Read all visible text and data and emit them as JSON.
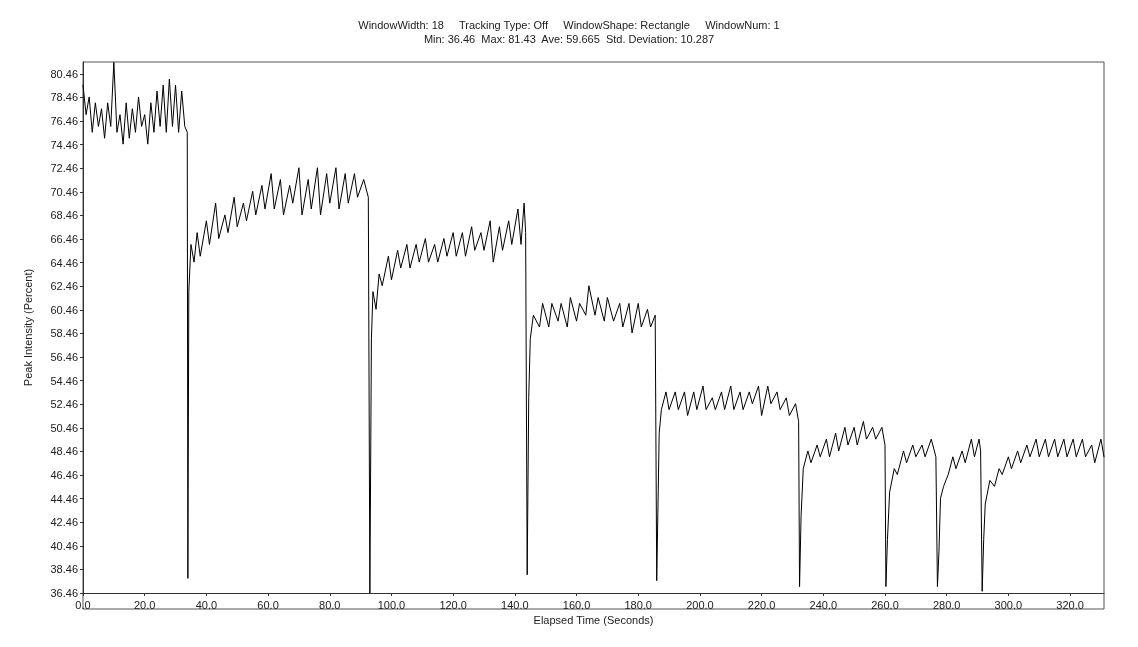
{
  "chart_data": {
    "type": "line",
    "title": "WindowWidth: 18     Tracking Type: Off     WindowShape: Rectangle     WindowNum: 1",
    "subtitle": "Min: 36.46  Max: 81.43  Ave: 59.665  Std. Deviation: 10.287",
    "xlabel": "Elapsed Time (Seconds)",
    "ylabel": "Peak Intensity (Percent)",
    "x": [
      0,
      1,
      2,
      3,
      4,
      5,
      6,
      7,
      8,
      9,
      10,
      11,
      12,
      13,
      14,
      15,
      16,
      17,
      18,
      19,
      20,
      21,
      22,
      23,
      24,
      25,
      26,
      27,
      28,
      29,
      30,
      31,
      32,
      33,
      33.8,
      34,
      34.3,
      35,
      36,
      37,
      38,
      40,
      41,
      43,
      44,
      46,
      47,
      49,
      50,
      52,
      53,
      55,
      56,
      58,
      59,
      61,
      62,
      64,
      65,
      67,
      68,
      70,
      71,
      73,
      74,
      76,
      77,
      79,
      80,
      82,
      83,
      85,
      86,
      88,
      89,
      91,
      92.5,
      93,
      93.5,
      94,
      95,
      96,
      97,
      99,
      100,
      102,
      103,
      105,
      106,
      108,
      109,
      111,
      112,
      114,
      115,
      117,
      118,
      120,
      121,
      123,
      124,
      126,
      127,
      129,
      130,
      132,
      133,
      135,
      136,
      138,
      139,
      141,
      142,
      143,
      143.5,
      144,
      144.5,
      145,
      146,
      148,
      149,
      151,
      152,
      154,
      155,
      157,
      158,
      160,
      161,
      163,
      164,
      166,
      167,
      169,
      170,
      172,
      174,
      175,
      177,
      178,
      180,
      181,
      183,
      184,
      185.5,
      186,
      186.8,
      187.5,
      189,
      190,
      192,
      193,
      195,
      196,
      198,
      199,
      201,
      202,
      204,
      205,
      207,
      208,
      210,
      211,
      213,
      214,
      216,
      217,
      219,
      220,
      222,
      223,
      225,
      226,
      228,
      229,
      231,
      232,
      232.3,
      232.8,
      233.5,
      235,
      236,
      238,
      239,
      241,
      242,
      244,
      245,
      247,
      248,
      250,
      251,
      253,
      254,
      256,
      257,
      259,
      260,
      260.3,
      260.8,
      261.5,
      263,
      264,
      266,
      267,
      269,
      270,
      272,
      273,
      275,
      276.5,
      277,
      277.5,
      278,
      279,
      280.5,
      282,
      283,
      285,
      286,
      288,
      289,
      290.5,
      291,
      291.5,
      292,
      292.5,
      294,
      295.5,
      297,
      298,
      300,
      301,
      303,
      304,
      306,
      307,
      309,
      310,
      312,
      313,
      315,
      316,
      318,
      319,
      321,
      322,
      324,
      325,
      327,
      328,
      330,
      331
    ],
    "values": [
      79.5,
      77,
      78.5,
      75.5,
      78,
      76,
      77.5,
      75,
      78,
      76,
      81.43,
      75.5,
      77,
      74.5,
      78,
      75,
      77.5,
      75.5,
      78.5,
      76,
      77,
      74.5,
      78,
      75.5,
      79,
      76,
      79.5,
      75.5,
      80,
      76,
      79.5,
      75.5,
      79,
      76,
      75.5,
      37.7,
      62,
      66,
      64.5,
      67,
      65,
      68,
      66,
      69.5,
      66.5,
      68.5,
      67,
      70,
      67.5,
      69.5,
      68,
      70.5,
      68.5,
      71,
      69,
      72,
      69,
      71.5,
      68.5,
      71,
      69.5,
      72.5,
      68.5,
      71.5,
      69,
      72.5,
      68.5,
      72,
      69.5,
      72.5,
      69,
      72,
      69.5,
      72,
      70,
      71.5,
      70,
      36.46,
      58,
      62,
      60.5,
      63.5,
      62.5,
      65,
      63,
      65.5,
      64,
      66,
      64,
      66,
      64.5,
      66.5,
      64.5,
      66,
      64.5,
      66.5,
      65,
      67,
      65,
      67,
      65,
      67.5,
      65.5,
      67,
      65.5,
      68,
      64.5,
      67.5,
      65.5,
      68,
      66,
      69,
      66,
      69.5,
      67,
      38,
      53,
      58,
      60,
      59,
      61,
      59,
      61,
      59.5,
      61,
      59,
      61.5,
      59.5,
      61,
      60,
      62.5,
      60,
      61.5,
      59.5,
      61.5,
      59.5,
      61,
      59,
      61,
      58.5,
      61,
      59,
      60.5,
      59,
      60,
      37.5,
      50,
      52,
      53.5,
      52,
      53.5,
      52,
      53.5,
      51.5,
      53.5,
      52,
      54,
      52,
      53,
      52,
      53.5,
      52,
      54,
      52,
      53.5,
      52,
      53.5,
      52.5,
      54,
      51.5,
      54,
      52.5,
      53.5,
      52,
      53,
      51.5,
      52.5,
      51,
      37,
      43,
      47,
      48.5,
      47.5,
      49,
      48,
      49.5,
      48,
      50,
      48.5,
      50.5,
      49,
      50.5,
      49,
      51,
      49.5,
      50.5,
      49.5,
      50.5,
      49,
      37,
      41,
      45,
      47,
      46.5,
      48.5,
      47.5,
      49,
      48,
      49,
      48,
      49.5,
      48,
      37,
      40,
      44.5,
      45.5,
      46.5,
      48,
      47,
      48.5,
      47.5,
      49.5,
      48,
      49.5,
      48.5,
      36.6,
      41,
      44,
      46,
      45.5,
      47,
      46.5,
      48,
      47,
      48.5,
      47.5,
      49,
      48,
      49.5,
      48,
      49.5,
      48,
      49.5,
      48,
      49.5,
      48,
      49.5,
      48,
      49.5,
      48,
      49,
      47.5,
      49.5,
      48
    ],
    "color": "#000000",
    "marker": "none",
    "line_style": "solid",
    "grid": false,
    "xlim": [
      0,
      331
    ],
    "ylim": [
      36.46,
      81.46
    ],
    "xticks": [
      {
        "value": 0,
        "label": "0.0"
      },
      {
        "value": 20,
        "label": "20.0"
      },
      {
        "value": 40,
        "label": "40.0"
      },
      {
        "value": 60,
        "label": "60.0"
      },
      {
        "value": 80,
        "label": "80.0"
      },
      {
        "value": 100,
        "label": "100.0"
      },
      {
        "value": 120,
        "label": "120.0"
      },
      {
        "value": 140,
        "label": "140.0"
      },
      {
        "value": 160,
        "label": "160.0"
      },
      {
        "value": 180,
        "label": "180.0"
      },
      {
        "value": 200,
        "label": "200.0"
      },
      {
        "value": 220,
        "label": "220.0"
      },
      {
        "value": 240,
        "label": "240.0"
      },
      {
        "value": 260,
        "label": "260.0"
      },
      {
        "value": 280,
        "label": "280.0"
      },
      {
        "value": 300,
        "label": "300.0"
      },
      {
        "value": 320,
        "label": "320.0"
      }
    ],
    "yticks": [
      36.46,
      38.46,
      40.46,
      42.46,
      44.46,
      46.46,
      48.46,
      50.46,
      52.46,
      54.46,
      56.46,
      58.46,
      60.46,
      62.46,
      64.46,
      66.46,
      68.46,
      70.46,
      72.46,
      74.46,
      76.46,
      78.46,
      80.46
    ]
  }
}
